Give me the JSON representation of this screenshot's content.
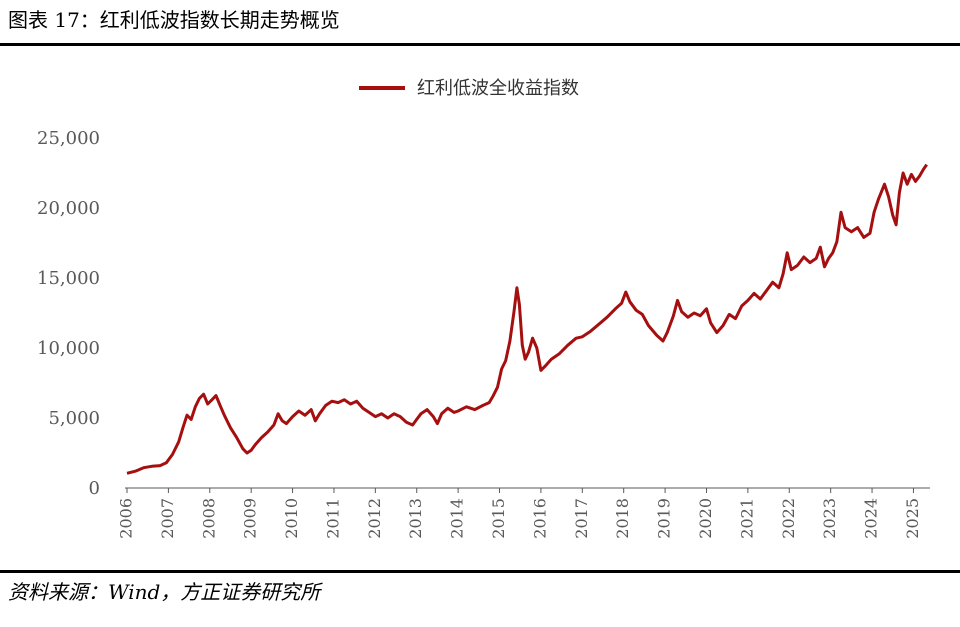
{
  "header": {
    "title": "图表 17：红利低波指数长期走势概览"
  },
  "footer": {
    "source": "资料来源：Wind，方正证券研究所"
  },
  "chart_data": {
    "type": "line",
    "series": [
      {
        "name": "红利低波全收益指数",
        "color": "#A50F0F",
        "points": [
          [
            2006.0,
            1050
          ],
          [
            2006.2,
            1200
          ],
          [
            2006.4,
            1450
          ],
          [
            2006.6,
            1550
          ],
          [
            2006.8,
            1600
          ],
          [
            2006.95,
            1800
          ],
          [
            2007.1,
            2400
          ],
          [
            2007.25,
            3300
          ],
          [
            2007.35,
            4300
          ],
          [
            2007.45,
            5200
          ],
          [
            2007.55,
            4900
          ],
          [
            2007.65,
            5800
          ],
          [
            2007.75,
            6400
          ],
          [
            2007.85,
            6700
          ],
          [
            2007.95,
            6000
          ],
          [
            2008.05,
            6300
          ],
          [
            2008.15,
            6600
          ],
          [
            2008.25,
            5900
          ],
          [
            2008.35,
            5200
          ],
          [
            2008.5,
            4300
          ],
          [
            2008.65,
            3600
          ],
          [
            2008.8,
            2800
          ],
          [
            2008.9,
            2500
          ],
          [
            2009.0,
            2700
          ],
          [
            2009.1,
            3100
          ],
          [
            2009.25,
            3600
          ],
          [
            2009.4,
            4000
          ],
          [
            2009.55,
            4500
          ],
          [
            2009.65,
            5300
          ],
          [
            2009.75,
            4800
          ],
          [
            2009.85,
            4600
          ],
          [
            2010.0,
            5100
          ],
          [
            2010.15,
            5500
          ],
          [
            2010.3,
            5200
          ],
          [
            2010.45,
            5600
          ],
          [
            2010.55,
            4800
          ],
          [
            2010.65,
            5300
          ],
          [
            2010.8,
            5900
          ],
          [
            2010.95,
            6200
          ],
          [
            2011.1,
            6100
          ],
          [
            2011.25,
            6300
          ],
          [
            2011.4,
            6000
          ],
          [
            2011.55,
            6200
          ],
          [
            2011.7,
            5700
          ],
          [
            2011.85,
            5400
          ],
          [
            2012.0,
            5100
          ],
          [
            2012.15,
            5300
          ],
          [
            2012.3,
            5000
          ],
          [
            2012.45,
            5300
          ],
          [
            2012.6,
            5100
          ],
          [
            2012.75,
            4700
          ],
          [
            2012.9,
            4500
          ],
          [
            2013.0,
            4900
          ],
          [
            2013.1,
            5300
          ],
          [
            2013.25,
            5600
          ],
          [
            2013.4,
            5100
          ],
          [
            2013.5,
            4600
          ],
          [
            2013.6,
            5300
          ],
          [
            2013.75,
            5700
          ],
          [
            2013.9,
            5400
          ],
          [
            2014.0,
            5500
          ],
          [
            2014.2,
            5800
          ],
          [
            2014.4,
            5600
          ],
          [
            2014.6,
            5900
          ],
          [
            2014.75,
            6100
          ],
          [
            2014.85,
            6600
          ],
          [
            2014.95,
            7200
          ],
          [
            2015.05,
            8500
          ],
          [
            2015.15,
            9100
          ],
          [
            2015.25,
            10500
          ],
          [
            2015.35,
            12600
          ],
          [
            2015.42,
            14300
          ],
          [
            2015.48,
            13100
          ],
          [
            2015.55,
            10200
          ],
          [
            2015.62,
            9200
          ],
          [
            2015.7,
            9700
          ],
          [
            2015.8,
            10700
          ],
          [
            2015.9,
            10000
          ],
          [
            2016.0,
            8400
          ],
          [
            2016.1,
            8700
          ],
          [
            2016.25,
            9200
          ],
          [
            2016.45,
            9600
          ],
          [
            2016.65,
            10200
          ],
          [
            2016.85,
            10700
          ],
          [
            2017.0,
            10800
          ],
          [
            2017.2,
            11200
          ],
          [
            2017.4,
            11700
          ],
          [
            2017.6,
            12200
          ],
          [
            2017.8,
            12800
          ],
          [
            2017.95,
            13200
          ],
          [
            2018.05,
            14000
          ],
          [
            2018.15,
            13300
          ],
          [
            2018.3,
            12700
          ],
          [
            2018.45,
            12400
          ],
          [
            2018.6,
            11600
          ],
          [
            2018.8,
            10900
          ],
          [
            2018.95,
            10500
          ],
          [
            2019.05,
            11100
          ],
          [
            2019.2,
            12300
          ],
          [
            2019.3,
            13400
          ],
          [
            2019.4,
            12600
          ],
          [
            2019.55,
            12200
          ],
          [
            2019.7,
            12500
          ],
          [
            2019.85,
            12300
          ],
          [
            2020.0,
            12800
          ],
          [
            2020.1,
            11800
          ],
          [
            2020.25,
            11100
          ],
          [
            2020.4,
            11600
          ],
          [
            2020.55,
            12400
          ],
          [
            2020.7,
            12100
          ],
          [
            2020.85,
            13000
          ],
          [
            2021.0,
            13400
          ],
          [
            2021.15,
            13900
          ],
          [
            2021.3,
            13500
          ],
          [
            2021.45,
            14100
          ],
          [
            2021.6,
            14700
          ],
          [
            2021.75,
            14300
          ],
          [
            2021.85,
            15300
          ],
          [
            2021.95,
            16800
          ],
          [
            2022.05,
            15600
          ],
          [
            2022.2,
            15900
          ],
          [
            2022.35,
            16500
          ],
          [
            2022.5,
            16100
          ],
          [
            2022.65,
            16400
          ],
          [
            2022.75,
            17200
          ],
          [
            2022.85,
            15800
          ],
          [
            2022.95,
            16400
          ],
          [
            2023.05,
            16800
          ],
          [
            2023.15,
            17600
          ],
          [
            2023.25,
            19700
          ],
          [
            2023.35,
            18600
          ],
          [
            2023.5,
            18300
          ],
          [
            2023.65,
            18600
          ],
          [
            2023.8,
            17900
          ],
          [
            2023.95,
            18200
          ],
          [
            2024.05,
            19700
          ],
          [
            2024.15,
            20600
          ],
          [
            2024.3,
            21700
          ],
          [
            2024.4,
            20800
          ],
          [
            2024.5,
            19500
          ],
          [
            2024.58,
            18800
          ],
          [
            2024.66,
            21100
          ],
          [
            2024.75,
            22500
          ],
          [
            2024.85,
            21700
          ],
          [
            2024.95,
            22400
          ],
          [
            2025.05,
            21900
          ],
          [
            2025.15,
            22300
          ],
          [
            2025.25,
            22800
          ],
          [
            2025.32,
            23100
          ]
        ]
      }
    ],
    "x_ticks": [
      "2006",
      "2007",
      "2008",
      "2009",
      "2010",
      "2011",
      "2012",
      "2013",
      "2014",
      "2015",
      "2016",
      "2017",
      "2018",
      "2019",
      "2020",
      "2021",
      "2022",
      "2023",
      "2024",
      "2025"
    ],
    "y_ticks": [
      "0",
      "5,000",
      "10,000",
      "15,000",
      "20,000",
      "25,000"
    ],
    "xlim": [
      2006,
      2025.4
    ],
    "ylim": [
      0,
      25000
    ],
    "grid": false,
    "legend_position": "top-center"
  }
}
